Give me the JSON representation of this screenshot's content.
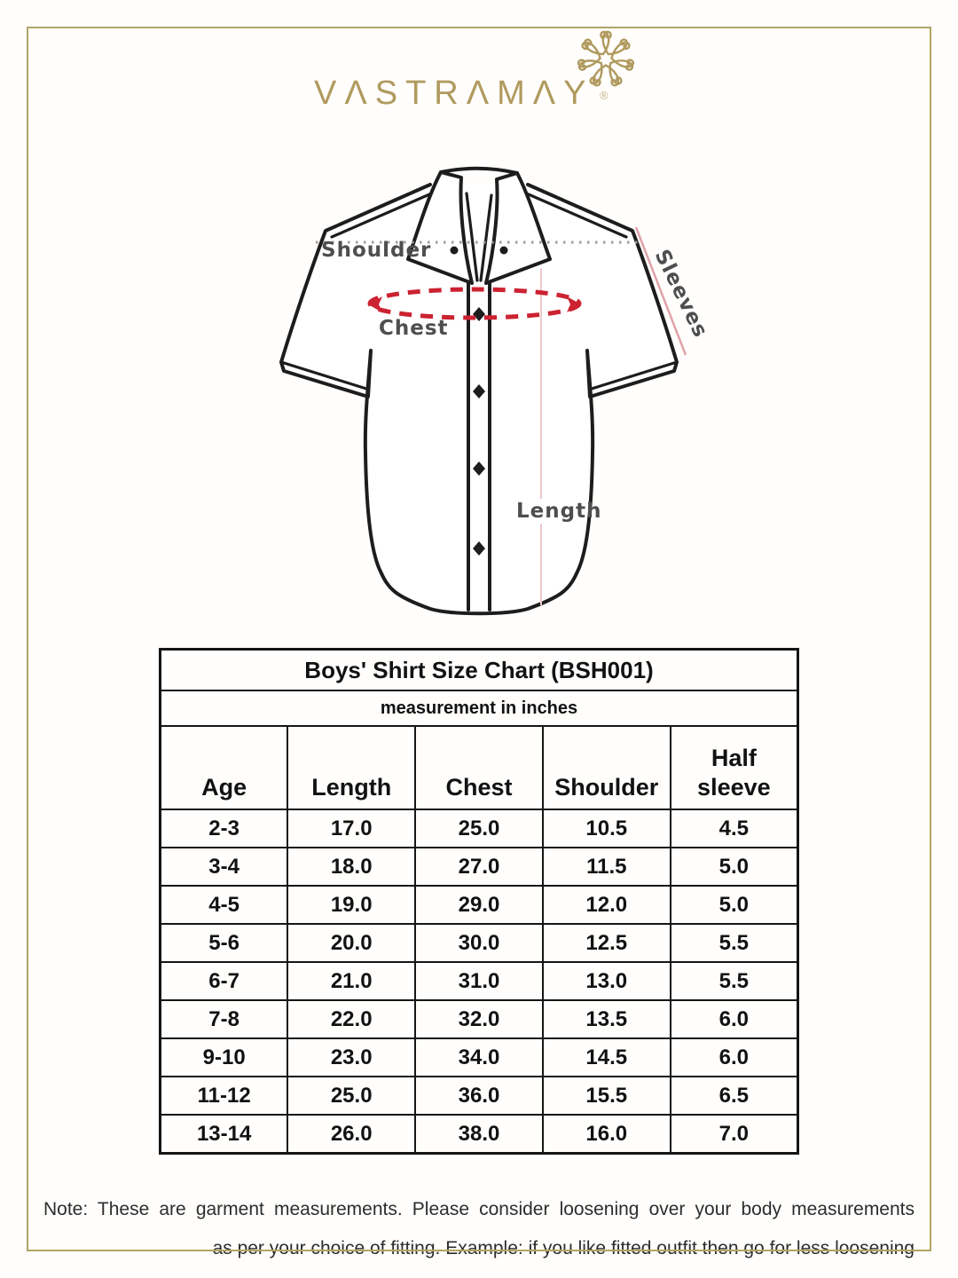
{
  "brand": {
    "logo_text": "VΛSTRΛMΛY",
    "registered_mark": "®"
  },
  "colors": {
    "frame_gold": "#b1a465",
    "gold": "#b09a5e",
    "ink": "#121212",
    "note_ink": "#2d2d2d",
    "outline": "#1d1d1d",
    "chest_red": "#cc2231",
    "guide_pink": "#dfa3a8",
    "guide_pink2": "#eecaca",
    "label_gray": "#4e4e4e",
    "dotted_gray": "#a39a98"
  },
  "diagram": {
    "shoulder_label": "Shoulder",
    "chest_label": "Chest",
    "sleeves_label": "Sleeves",
    "length_label": "Length"
  },
  "table": {
    "title": "Boys' Shirt Size Chart (BSH001)",
    "subtitle": "measurement in inches",
    "columns": [
      "Age",
      "Length",
      "Chest",
      "Shoulder",
      "Half sleeve"
    ],
    "rows": [
      [
        "2-3",
        "17.0",
        "25.0",
        "10.5",
        "4.5"
      ],
      [
        "3-4",
        "18.0",
        "27.0",
        "11.5",
        "5.0"
      ],
      [
        "4-5",
        "19.0",
        "29.0",
        "12.0",
        "5.0"
      ],
      [
        "5-6",
        "20.0",
        "30.0",
        "12.5",
        "5.5"
      ],
      [
        "6-7",
        "21.0",
        "31.0",
        "13.0",
        "5.5"
      ],
      [
        "7-8",
        "22.0",
        "32.0",
        "13.5",
        "6.0"
      ],
      [
        "9-10",
        "23.0",
        "34.0",
        "14.5",
        "6.0"
      ],
      [
        "11-12",
        "25.0",
        "36.0",
        "15.5",
        "6.5"
      ],
      [
        "13-14",
        "26.0",
        "38.0",
        "16.0",
        "7.0"
      ]
    ]
  },
  "note": {
    "line1": "Note: These are garment measurements. Please consider loosening over your body measurements",
    "line2": "as per your choice of fitting. Example: if you like fitted outfit then go for less loosening"
  }
}
